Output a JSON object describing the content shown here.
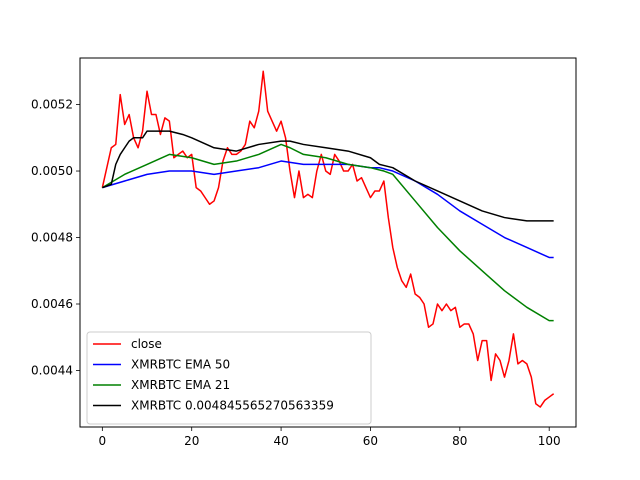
{
  "chart_data": {
    "type": "line",
    "title": "",
    "xlabel": "",
    "ylabel": "",
    "xlim": [
      -5,
      106
    ],
    "ylim": [
      0.00423,
      0.00534
    ],
    "xticks": [
      0,
      20,
      40,
      60,
      80,
      100
    ],
    "xtick_labels": [
      "0",
      "20",
      "40",
      "60",
      "80",
      "100"
    ],
    "yticks": [
      0.0044,
      0.0046,
      0.0048,
      0.005,
      0.0052
    ],
    "ytick_labels": [
      "0.0044",
      "0.0046",
      "0.0048",
      "0.0050",
      "0.0052"
    ],
    "grid": false,
    "legend_position": "lower-left",
    "series": [
      {
        "name": "close",
        "color": "#ff0000",
        "x": [
          0,
          2,
          3,
          4,
          5,
          6,
          7,
          8,
          9,
          10,
          11,
          12,
          13,
          14,
          15,
          16,
          17,
          18,
          19,
          20,
          21,
          22,
          23,
          24,
          25,
          26,
          27,
          28,
          29,
          30,
          31,
          32,
          33,
          34,
          35,
          36,
          37,
          38,
          39,
          40,
          41,
          42,
          43,
          44,
          45,
          46,
          47,
          48,
          49,
          50,
          51,
          52,
          53,
          54,
          55,
          56,
          57,
          58,
          59,
          60,
          61,
          62,
          63,
          64,
          65,
          66,
          67,
          68,
          69,
          70,
          71,
          72,
          73,
          74,
          75,
          76,
          77,
          78,
          79,
          80,
          81,
          82,
          83,
          84,
          85,
          86,
          87,
          88,
          89,
          90,
          91,
          92,
          93,
          94,
          95,
          96,
          97,
          98,
          99,
          100,
          101
        ],
        "values": [
          0.00495,
          0.00507,
          0.00508,
          0.00523,
          0.00514,
          0.00517,
          0.0051,
          0.00507,
          0.00512,
          0.00524,
          0.00517,
          0.00517,
          0.00511,
          0.00516,
          0.00515,
          0.00504,
          0.00505,
          0.00506,
          0.00504,
          0.00505,
          0.00495,
          0.00494,
          0.00492,
          0.0049,
          0.00491,
          0.00495,
          0.00503,
          0.00507,
          0.00505,
          0.00505,
          0.00506,
          0.00508,
          0.00515,
          0.00513,
          0.00518,
          0.0053,
          0.00518,
          0.00515,
          0.00512,
          0.00515,
          0.0051,
          0.005,
          0.00492,
          0.005,
          0.00492,
          0.00493,
          0.00492,
          0.005,
          0.00505,
          0.005,
          0.00499,
          0.00505,
          0.00503,
          0.005,
          0.005,
          0.00502,
          0.00497,
          0.00498,
          0.00495,
          0.00492,
          0.00494,
          0.00494,
          0.00497,
          0.00486,
          0.00477,
          0.00471,
          0.00467,
          0.00465,
          0.00469,
          0.00463,
          0.00462,
          0.0046,
          0.00453,
          0.00454,
          0.0046,
          0.00458,
          0.0046,
          0.00458,
          0.00459,
          0.00453,
          0.00454,
          0.00454,
          0.00451,
          0.00443,
          0.00449,
          0.00449,
          0.00437,
          0.00445,
          0.00443,
          0.00438,
          0.00443,
          0.00451,
          0.00442,
          0.00443,
          0.00442,
          0.00438,
          0.0043,
          0.00429,
          0.00431,
          0.00432,
          0.00433
        ]
      },
      {
        "name": "XMRBTC EMA 50",
        "color": "#0000ff",
        "x": [
          0,
          5,
          10,
          15,
          20,
          25,
          30,
          35,
          40,
          45,
          50,
          55,
          60,
          62,
          65,
          70,
          75,
          80,
          85,
          90,
          95,
          100,
          101
        ],
        "values": [
          0.00495,
          0.00497,
          0.00499,
          0.005,
          0.005,
          0.00499,
          0.005,
          0.00501,
          0.00503,
          0.00502,
          0.00502,
          0.00502,
          0.00501,
          0.00501,
          0.005,
          0.00497,
          0.00493,
          0.00488,
          0.00484,
          0.0048,
          0.00477,
          0.00474,
          0.00474
        ]
      },
      {
        "name": "XMRBTC EMA 21",
        "color": "#008000",
        "x": [
          0,
          5,
          10,
          15,
          20,
          25,
          30,
          35,
          40,
          42,
          45,
          50,
          55,
          60,
          63,
          65,
          70,
          75,
          80,
          85,
          90,
          95,
          100,
          101
        ],
        "values": [
          0.00495,
          0.00499,
          0.00502,
          0.00505,
          0.00504,
          0.00502,
          0.00503,
          0.00505,
          0.00508,
          0.00507,
          0.00505,
          0.00504,
          0.00502,
          0.00501,
          0.005,
          0.00499,
          0.00491,
          0.00483,
          0.00476,
          0.0047,
          0.00464,
          0.00459,
          0.00455,
          0.00455
        ]
      },
      {
        "name": "XMRBTC 0.004845565270563359",
        "color": "#000000",
        "x": [
          0,
          2,
          3,
          4,
          5,
          6,
          7,
          8,
          9,
          10,
          12,
          15,
          18,
          20,
          25,
          30,
          35,
          40,
          42,
          45,
          50,
          55,
          60,
          62,
          65,
          70,
          75,
          80,
          85,
          90,
          95,
          100,
          101
        ],
        "values": [
          0.00495,
          0.00496,
          0.00502,
          0.00505,
          0.00507,
          0.00509,
          0.0051,
          0.0051,
          0.0051,
          0.00512,
          0.00512,
          0.00512,
          0.00511,
          0.0051,
          0.00507,
          0.00506,
          0.00508,
          0.00509,
          0.00509,
          0.00508,
          0.00507,
          0.00506,
          0.00504,
          0.00502,
          0.00501,
          0.00497,
          0.00494,
          0.00491,
          0.00488,
          0.00486,
          0.00485,
          0.00485,
          0.00485
        ]
      }
    ]
  }
}
